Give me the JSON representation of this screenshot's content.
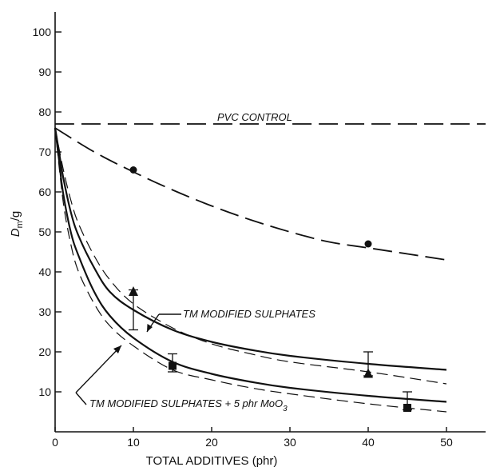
{
  "chart_data": {
    "type": "line",
    "title": "",
    "xlabel": "TOTAL ADDITIVES (phr)",
    "ylabel": "Dm/g",
    "ylabel_main": "D",
    "ylabel_sub": "m",
    "ylabel_tail": "/g",
    "xlim": [
      0,
      55
    ],
    "ylim": [
      0,
      105
    ],
    "xticks": [
      0,
      10,
      20,
      30,
      40,
      50
    ],
    "yticks": [
      10,
      20,
      30,
      40,
      50,
      60,
      70,
      80,
      90,
      100
    ],
    "grid": false,
    "legend": "none",
    "annotations": {
      "pvc": "PVC CONTROL",
      "upper": "TM MODIFIED SULPHATES",
      "lower_main": "TM MODIFIED SULPHATES + 5 phr MoO",
      "lower_sub": "3"
    },
    "series": [
      {
        "style": "dashed",
        "x": [
          0,
          55
        ],
        "y": [
          77,
          77
        ]
      },
      {
        "style": "dashed",
        "x": [
          0,
          5,
          10,
          15,
          20,
          25,
          30,
          35,
          40,
          45,
          50
        ],
        "y": [
          76,
          70,
          65,
          60.5,
          56.5,
          53,
          50,
          47.5,
          46,
          44.5,
          43
        ]
      },
      {
        "style": "solid",
        "x": [
          0,
          0.5,
          1,
          2,
          3,
          5,
          7,
          10,
          15,
          20,
          25,
          30,
          40,
          50
        ],
        "y": [
          76,
          70,
          64,
          55,
          49,
          41,
          35,
          30.5,
          25.5,
          22.5,
          20.5,
          19,
          17,
          15.5
        ]
      },
      {
        "style": "dashed",
        "x": [
          0,
          1,
          2,
          3,
          5,
          7,
          10,
          15,
          20,
          25,
          30,
          40,
          50
        ],
        "y": [
          76,
          66,
          58,
          52,
          44,
          38,
          32,
          26,
          22,
          19.5,
          17.5,
          15,
          12
        ]
      },
      {
        "style": "solid",
        "x": [
          0,
          0.5,
          1,
          2,
          3,
          5,
          7,
          10,
          15,
          20,
          25,
          30,
          40,
          50
        ],
        "y": [
          76,
          68,
          60,
          50,
          44,
          35,
          29,
          23.5,
          17.5,
          14.5,
          12.5,
          11,
          9,
          7.5
        ]
      },
      {
        "style": "dashed",
        "x": [
          0,
          1,
          2,
          3,
          5,
          7,
          10,
          15,
          20,
          25,
          30,
          40,
          50
        ],
        "y": [
          76,
          58,
          47,
          40,
          32,
          26.5,
          21.5,
          15.5,
          13,
          11,
          9.5,
          7,
          5
        ]
      }
    ],
    "points": [
      {
        "marker": "circle",
        "x": 10,
        "y": 65.5
      },
      {
        "marker": "circle",
        "x": 40,
        "y": 47
      },
      {
        "marker": "triangle",
        "x": 10,
        "y": 35
      },
      {
        "marker": "triangle",
        "x": 40,
        "y": 14.5
      },
      {
        "marker": "square",
        "x": 15,
        "y": 16.5
      },
      {
        "marker": "square",
        "x": 45,
        "y": 6
      }
    ],
    "error_bars": [
      {
        "x": 10,
        "low": 25.5,
        "high": 35.5
      },
      {
        "x": 40,
        "low": 14,
        "high": 20
      },
      {
        "x": 15,
        "low": 15,
        "high": 19.5
      },
      {
        "x": 45,
        "low": 5.5,
        "high": 10
      }
    ]
  }
}
